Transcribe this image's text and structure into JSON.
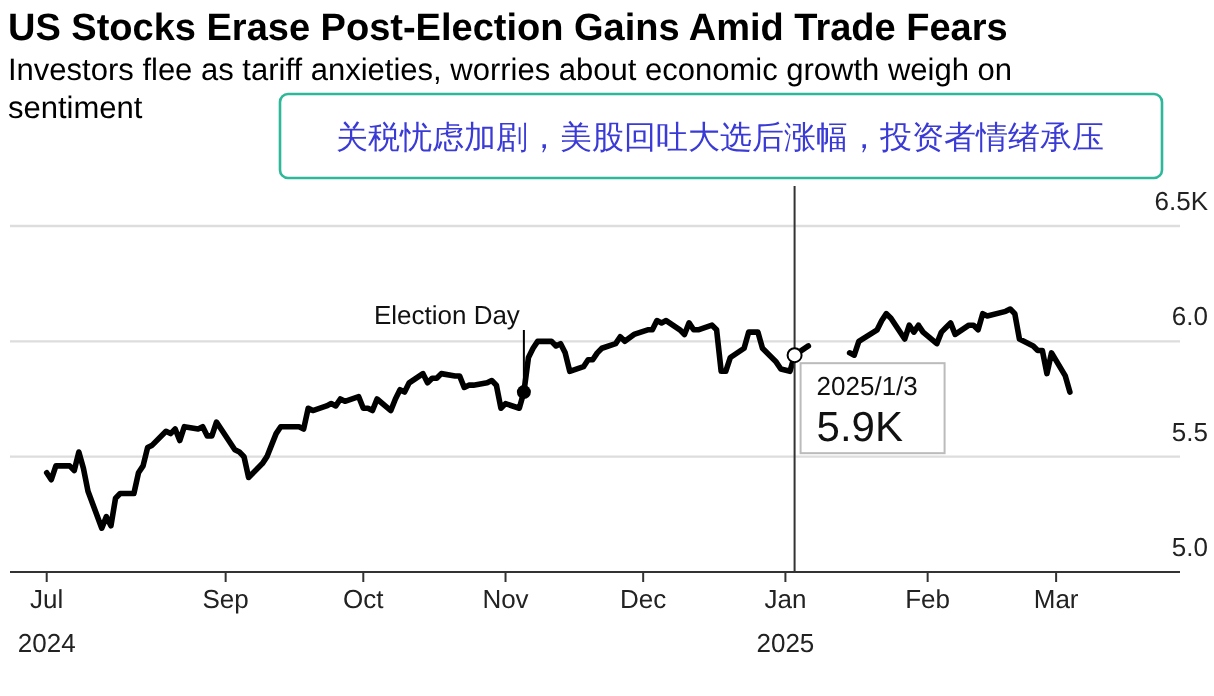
{
  "chart_data": {
    "type": "line",
    "title": "US Stocks Erase Post-Election Gains Amid Trade Fears",
    "subtitle": "Investors flee as tariff anxieties, worries about economic growth weigh on sentiment",
    "x": [
      "2024-07-24",
      "2024-07-25",
      "2024-07-26",
      "2024-07-29",
      "2024-07-30",
      "2024-07-31",
      "2024-08-01",
      "2024-08-02",
      "2024-08-05",
      "2024-08-06",
      "2024-08-07",
      "2024-08-08",
      "2024-08-09",
      "2024-08-12",
      "2024-08-13",
      "2024-08-14",
      "2024-08-15",
      "2024-08-16",
      "2024-08-19",
      "2024-08-20",
      "2024-08-21",
      "2024-08-22",
      "2024-08-23",
      "2024-08-26",
      "2024-08-27",
      "2024-08-28",
      "2024-08-29",
      "2024-08-30",
      "2024-09-03",
      "2024-09-04",
      "2024-09-05",
      "2024-09-06",
      "2024-09-09",
      "2024-09-10",
      "2024-09-11",
      "2024-09-12",
      "2024-09-13",
      "2024-09-16",
      "2024-09-17",
      "2024-09-18",
      "2024-09-19",
      "2024-09-20",
      "2024-09-23",
      "2024-09-24",
      "2024-09-25",
      "2024-09-26",
      "2024-09-27",
      "2024-09-30",
      "2024-10-01",
      "2024-10-02",
      "2024-10-03",
      "2024-10-04",
      "2024-10-07",
      "2024-10-08",
      "2024-10-09",
      "2024-10-10",
      "2024-10-11",
      "2024-10-14",
      "2024-10-15",
      "2024-10-16",
      "2024-10-17",
      "2024-10-18",
      "2024-10-21",
      "2024-10-22",
      "2024-10-23",
      "2024-10-24",
      "2024-10-25",
      "2024-10-28",
      "2024-10-29",
      "2024-10-30",
      "2024-10-31",
      "2024-11-01",
      "2024-11-04",
      "2024-11-05",
      "2024-11-06",
      "2024-11-07",
      "2024-11-08",
      "2024-11-11",
      "2024-11-12",
      "2024-11-13",
      "2024-11-14",
      "2024-11-15",
      "2024-11-18",
      "2024-11-19",
      "2024-11-20",
      "2024-11-21",
      "2024-11-22",
      "2024-11-25",
      "2024-11-26",
      "2024-11-27",
      "2024-11-29",
      "2024-12-02",
      "2024-12-03",
      "2024-12-04",
      "2024-12-05",
      "2024-12-06",
      "2024-12-09",
      "2024-12-10",
      "2024-12-11",
      "2024-12-12",
      "2024-12-13",
      "2024-12-16",
      "2024-12-17",
      "2024-12-18",
      "2024-12-19",
      "2024-12-20",
      "2024-12-23",
      "2024-12-24",
      "2024-12-26",
      "2024-12-27",
      "2024-12-30",
      "2024-12-31",
      "2025-01-02",
      "2025-01-03",
      "2025-01-06",
      "2025-01-07",
      "2025-01-08",
      "2025-01-10",
      "2025-01-13",
      "2025-01-14",
      "2025-01-15",
      "2025-01-16",
      "2025-01-17",
      "2025-01-21",
      "2025-01-22",
      "2025-01-23",
      "2025-01-24",
      "2025-01-27",
      "2025-01-28",
      "2025-01-29",
      "2025-01-30",
      "2025-01-31",
      "2025-02-03",
      "2025-02-04",
      "2025-02-05",
      "2025-02-06",
      "2025-02-07",
      "2025-02-10",
      "2025-02-11",
      "2025-02-12",
      "2025-02-13",
      "2025-02-14",
      "2025-02-18",
      "2025-02-19",
      "2025-02-20",
      "2025-02-21",
      "2025-02-24",
      "2025-02-25",
      "2025-02-26",
      "2025-02-27",
      "2025-02-28",
      "2025-03-03",
      "2025-03-04"
    ],
    "series": [
      {
        "color": "#000000",
        "values": [
          5.43,
          5.4,
          5.46,
          5.46,
          5.44,
          5.52,
          5.45,
          5.35,
          5.19,
          5.24,
          5.2,
          5.32,
          5.34,
          5.34,
          5.43,
          5.46,
          5.54,
          5.55,
          5.61,
          5.6,
          5.62,
          5.57,
          5.63,
          5.62,
          5.63,
          5.59,
          5.59,
          5.65,
          5.53,
          5.52,
          5.5,
          5.41,
          5.47,
          5.5,
          5.55,
          5.6,
          5.63,
          5.63,
          5.63,
          5.62,
          5.71,
          5.7,
          5.72,
          5.73,
          5.72,
          5.75,
          5.74,
          5.76,
          5.71,
          5.71,
          5.7,
          5.75,
          5.7,
          5.75,
          5.79,
          5.78,
          5.82,
          5.86,
          5.82,
          5.84,
          5.84,
          5.86,
          5.85,
          5.85,
          5.8,
          5.81,
          5.81,
          5.82,
          5.83,
          5.81,
          5.71,
          5.73,
          5.71,
          5.78,
          5.93,
          5.97,
          6.0,
          6.0,
          5.98,
          5.99,
          5.95,
          5.87,
          5.89,
          5.92,
          5.92,
          5.95,
          5.97,
          5.99,
          6.02,
          6.0,
          6.03,
          6.05,
          6.05,
          6.09,
          6.08,
          6.09,
          6.05,
          6.03,
          6.08,
          6.05,
          6.05,
          6.07,
          6.05,
          5.87,
          5.87,
          5.93,
          5.97,
          6.04,
          6.04,
          5.97,
          5.91,
          5.88,
          5.87,
          5.94,
          5.98,
          null,
          null,
          null,
          null,
          null,
          5.95,
          5.94,
          6.0,
          6.05,
          6.09,
          6.12,
          6.1,
          6.01,
          6.07,
          6.04,
          6.07,
          6.04,
          5.99,
          6.04,
          6.06,
          6.08,
          6.03,
          6.07,
          6.07,
          6.05,
          6.12,
          6.11,
          6.13,
          6.14,
          6.12,
          6.01,
          5.98,
          5.96,
          5.96,
          5.86,
          5.95,
          5.85,
          5.78
        ]
      }
    ],
    "xlim": [
      "2024-07-16",
      "2025-03-28"
    ],
    "xticks": [
      {
        "value": "2024-07-24",
        "label": "Jul\n2024"
      },
      {
        "value": "2024-09-01",
        "label": "Sep"
      },
      {
        "value": "2024-10-01",
        "label": "Oct"
      },
      {
        "value": "2024-11-01",
        "label": "Nov"
      },
      {
        "value": "2024-12-01",
        "label": "Dec"
      },
      {
        "value": "2025-01-01",
        "label": "Jan\n2025"
      },
      {
        "value": "2025-02-01",
        "label": "Feb"
      },
      {
        "value": "2025-03-01",
        "label": "Mar"
      }
    ],
    "ylim": [
      5,
      6.5
    ],
    "yticks": [
      {
        "value": 5,
        "label": "5.0"
      },
      {
        "value": 5.5,
        "label": "5.5"
      },
      {
        "value": 6,
        "label": "6.0"
      },
      {
        "value": 6.5,
        "label": "6.5K"
      }
    ],
    "grid": "y",
    "line_style": "solid",
    "marker": "none",
    "ref_lines": [
      {
        "axis": "x",
        "value": "2024-11-05",
        "label": "Election Day",
        "color": "#000000"
      },
      {
        "axis": "x",
        "value": "2025-01-03",
        "color": "#333333"
      }
    ],
    "annotations": [
      "关税忧虑加剧，美股回吐大选后涨幅，投资者情绪承压",
      {
        "text": "2025/1/3",
        "x": "2025-01-03",
        "y": 5.94
      },
      {
        "text": "5.9K",
        "x": "2025-01-03",
        "y": 5.94
      }
    ]
  }
}
